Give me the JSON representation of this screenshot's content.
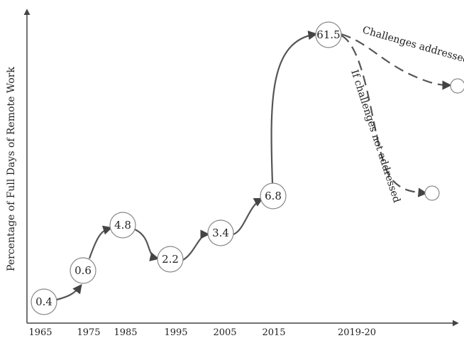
{
  "chart_data": {
    "type": "line",
    "title": "",
    "xlabel": "",
    "ylabel": "Percentage of Full Days of Remote Work",
    "x_ticks": [
      "1965",
      "1975",
      "1985",
      "1995",
      "2005",
      "2015",
      "2019-20"
    ],
    "points": [
      {
        "x": "1965",
        "label": "0.4",
        "value": 0.4
      },
      {
        "x": "1975",
        "label": "0.6",
        "value": 0.6
      },
      {
        "x": "1980",
        "label": "4.8",
        "value": 4.8
      },
      {
        "x": "1995",
        "label": "2.2",
        "value": 2.2
      },
      {
        "x": "2005",
        "label": "3.4",
        "value": 3.4
      },
      {
        "x": "2015",
        "label": "6.8",
        "value": 6.8
      },
      {
        "x": "2019-20",
        "label": "61.5",
        "value": 61.5
      }
    ],
    "projections": [
      {
        "label": "Challenges addressed",
        "style": "dashed"
      },
      {
        "label": "If challenges not addressed",
        "style": "dashed"
      }
    ],
    "colors": {
      "line": "#555555",
      "node_stroke": "#888888",
      "text": "#222222"
    }
  }
}
